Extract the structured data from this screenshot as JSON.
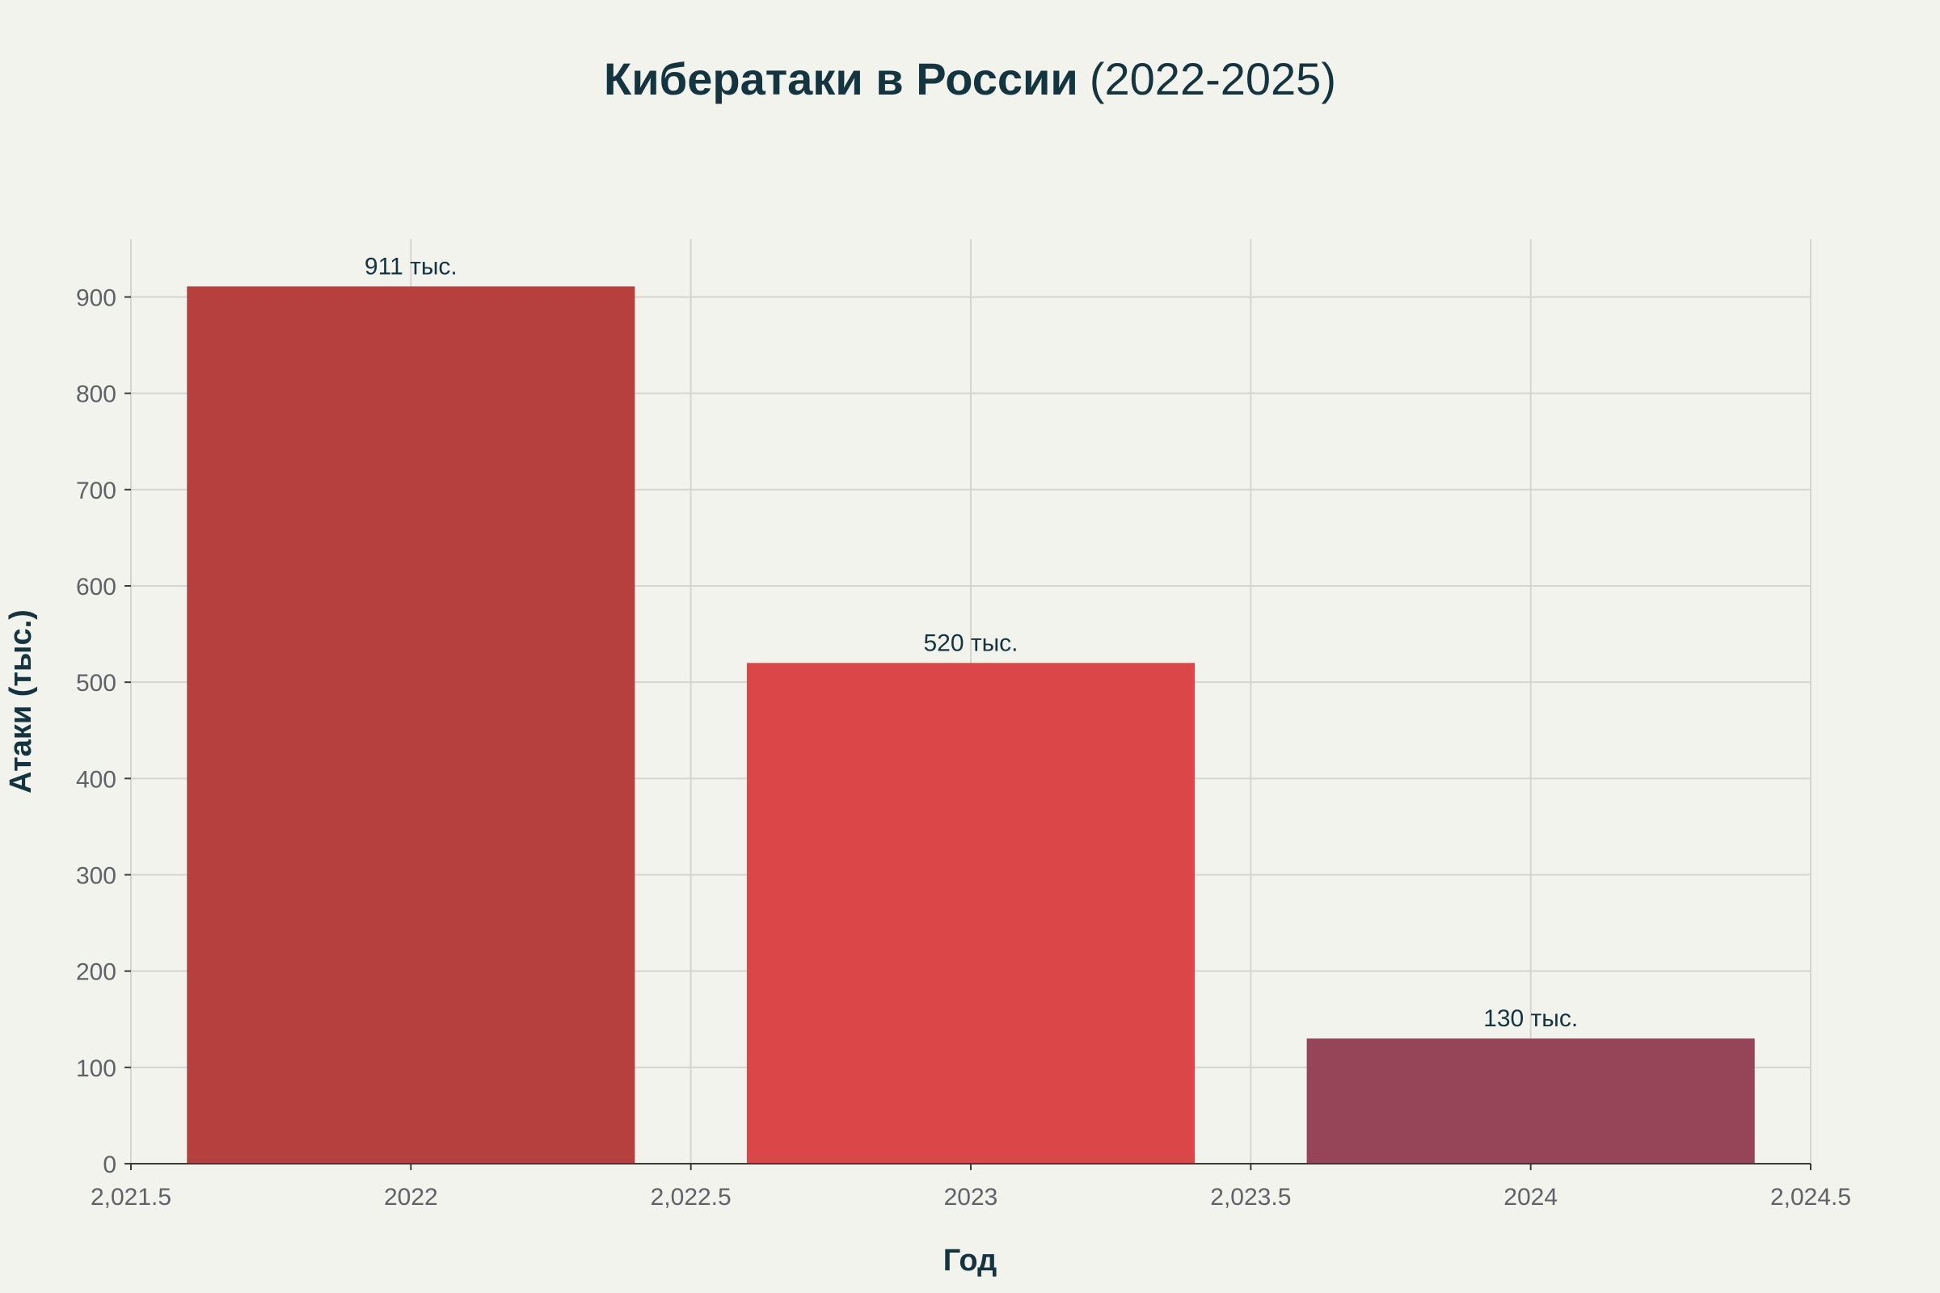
{
  "chart_data": {
    "type": "bar",
    "title_main": "Кибератаки в России",
    "title_years": "(2022-2025)",
    "xlabel": "Год",
    "ylabel": "Атаки (тыс.)",
    "categories": [
      "2022",
      "2023",
      "2024"
    ],
    "x": [
      2022,
      2023,
      2024
    ],
    "values": [
      911,
      520,
      130
    ],
    "data_labels": [
      "911 тыс.",
      "520 тыс.",
      "130 тыс."
    ],
    "colors": [
      "#b5403d",
      "#db4648",
      "#964457"
    ],
    "xlim": [
      2021.5,
      2024.5
    ],
    "ylim": [
      0,
      960
    ],
    "x_ticks": [
      2021.5,
      2022,
      2022.5,
      2023,
      2023.5,
      2024,
      2024.5
    ],
    "x_tick_labels": [
      "2,021.5",
      "2022",
      "2,022.5",
      "2023",
      "2,023.5",
      "2024",
      "2,024.5"
    ],
    "y_ticks": [
      0,
      100,
      200,
      300,
      400,
      500,
      600,
      700,
      800,
      900
    ],
    "y_tick_labels": [
      "0",
      "100",
      "200",
      "300",
      "400",
      "500",
      "600",
      "700",
      "800",
      "900"
    ],
    "grid": true,
    "legend": false
  }
}
